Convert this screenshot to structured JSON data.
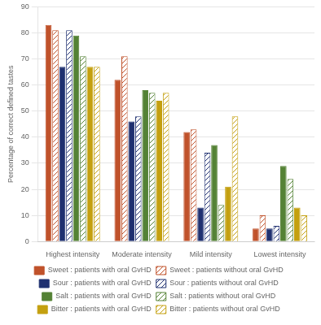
{
  "chart_data": {
    "type": "bar",
    "categories": [
      "Highest intensity",
      "Moderate intensity",
      "Mild intensity",
      "Lowest intensity"
    ],
    "series": [
      {
        "name": "Sweet : patients with oral GvHD",
        "color": "#C0522B",
        "values": [
          83,
          62,
          42,
          5
        ]
      },
      {
        "name": "Sweet : patients without oral GvHD",
        "color": "#C0522B",
        "values": [
          81,
          71,
          43,
          10
        ]
      },
      {
        "name": "Sour : patients with oral GvHD",
        "color": "#1F3070",
        "values": [
          67,
          46,
          13,
          5
        ]
      },
      {
        "name": "Sour : patients without oral GvHD",
        "color": "#1F3070",
        "values": [
          81,
          48,
          34,
          6
        ]
      },
      {
        "name": "Salt : patients with oral GvHD",
        "color": "#548235",
        "values": [
          79,
          58,
          37,
          29
        ]
      },
      {
        "name": "Salt : patients without oral GvHD",
        "color": "#548235",
        "values": [
          71,
          57,
          14,
          24
        ]
      },
      {
        "name": "Bitter : patients with oral GvHD",
        "color": "#C4A010",
        "values": [
          67,
          54,
          21,
          13
        ]
      },
      {
        "name": "Bitter : patients without oral GvHD",
        "color": "#C4A010",
        "values": [
          67,
          57,
          48,
          10
        ]
      }
    ],
    "ylabel": "Percentage of correct defined tastes",
    "ylim": [
      0,
      90
    ],
    "yticks": [
      0,
      10,
      20,
      30,
      40,
      50,
      60,
      70,
      80,
      90
    ],
    "grid": true,
    "legend": "bottom"
  }
}
